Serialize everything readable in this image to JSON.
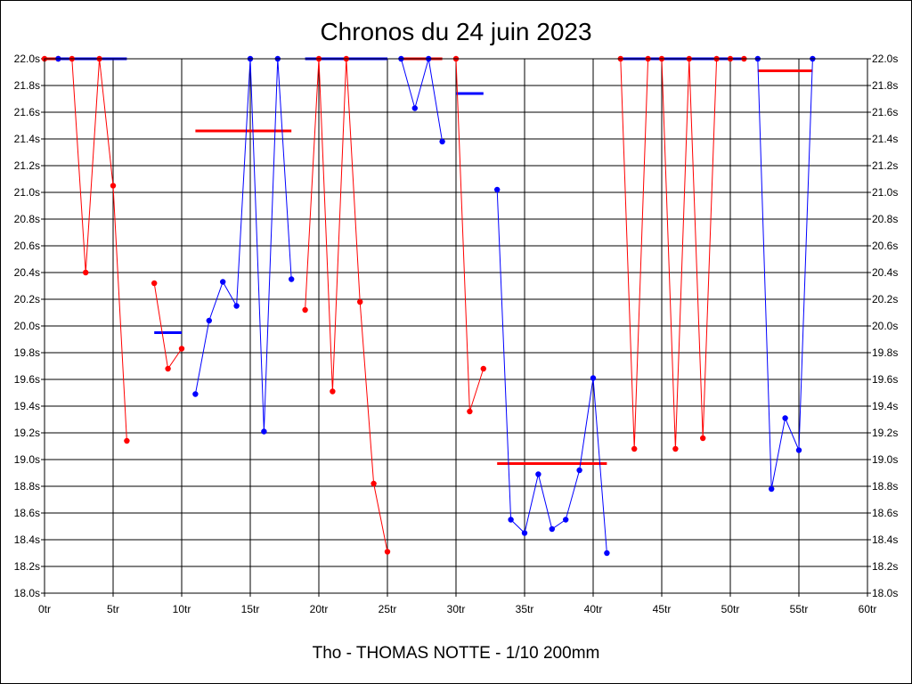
{
  "chart_data": {
    "type": "line",
    "title": "Chronos du 24 juin 2023",
    "subtitle": "Tho - THOMAS NOTTE - 1/10 200mm",
    "xlabel": "",
    "ylabel": "",
    "xlim": [
      0,
      60
    ],
    "ylim": [
      18.0,
      22.0
    ],
    "x_ticks": [
      0,
      5,
      10,
      15,
      20,
      25,
      30,
      35,
      40,
      45,
      50,
      55,
      60
    ],
    "x_tick_labels": [
      "0tr",
      "5tr",
      "10tr",
      "15tr",
      "20tr",
      "25tr",
      "30tr",
      "35tr",
      "40tr",
      "45tr",
      "50tr",
      "55tr",
      "60tr"
    ],
    "y_ticks": [
      18.0,
      18.2,
      18.4,
      18.6,
      18.8,
      19.0,
      19.2,
      19.4,
      19.6,
      19.8,
      20.0,
      20.2,
      20.4,
      20.6,
      20.8,
      21.0,
      21.2,
      21.4,
      21.6,
      21.8,
      22.0
    ],
    "y_tick_labels": [
      "18.0s",
      "18.2s",
      "18.4s",
      "18.6s",
      "18.8s",
      "19.0s",
      "19.2s",
      "19.4s",
      "19.6s",
      "19.8s",
      "20.0s",
      "20.2s",
      "20.4s",
      "20.6s",
      "20.8s",
      "21.0s",
      "21.2s",
      "21.4s",
      "21.6s",
      "21.8s",
      "22.0s"
    ],
    "y_axis_right": true,
    "grid": true,
    "series": [
      {
        "color": "#ff0000",
        "points": [
          [
            0,
            22.0
          ],
          [
            1,
            22.0
          ]
        ]
      },
      {
        "color": "#0000ff",
        "points": [
          [
            1,
            22.0
          ]
        ]
      },
      {
        "color": "#ff0000",
        "points": [
          [
            2,
            22.0
          ],
          [
            3,
            20.4
          ],
          [
            4,
            22.0
          ],
          [
            5,
            21.05
          ],
          [
            6,
            19.14
          ]
        ]
      },
      {
        "color": "#ff0000",
        "points": [
          [
            8,
            20.32
          ],
          [
            9,
            19.68
          ],
          [
            10,
            19.83
          ]
        ]
      },
      {
        "color": "#0000ff",
        "points": [
          [
            11,
            19.49
          ],
          [
            12,
            20.04
          ],
          [
            13,
            20.33
          ],
          [
            14,
            20.15
          ],
          [
            15,
            22.0
          ],
          [
            16,
            19.21
          ],
          [
            17,
            22.0
          ],
          [
            18,
            20.35
          ]
        ]
      },
      {
        "color": "#ff0000",
        "points": [
          [
            19,
            20.12
          ],
          [
            20,
            22.0
          ],
          [
            21,
            19.51
          ],
          [
            22,
            22.0
          ],
          [
            23,
            20.18
          ],
          [
            24,
            18.82
          ],
          [
            25,
            18.31
          ]
        ]
      },
      {
        "color": "#0000ff",
        "points": [
          [
            26,
            22.0
          ],
          [
            27,
            21.63
          ],
          [
            28,
            22.0
          ],
          [
            29,
            21.38
          ]
        ]
      },
      {
        "color": "#ff0000",
        "points": [
          [
            30,
            22.0
          ],
          [
            31,
            19.36
          ],
          [
            32,
            19.68
          ]
        ]
      },
      {
        "color": "#0000ff",
        "points": [
          [
            33,
            21.02
          ],
          [
            34,
            18.55
          ],
          [
            35,
            18.45
          ],
          [
            36,
            18.89
          ],
          [
            37,
            18.48
          ],
          [
            38,
            18.55
          ],
          [
            39,
            18.92
          ],
          [
            40,
            19.61
          ],
          [
            41,
            18.3
          ]
        ]
      },
      {
        "color": "#ff0000",
        "points": [
          [
            42,
            22.0
          ],
          [
            43,
            19.08
          ],
          [
            44,
            22.0
          ],
          [
            45,
            22.0
          ],
          [
            46,
            19.08
          ],
          [
            47,
            22.0
          ],
          [
            48,
            19.16
          ],
          [
            49,
            22.0
          ],
          [
            50,
            22.0
          ],
          [
            51,
            22.0
          ]
        ]
      },
      {
        "color": "#0000ff",
        "points": [
          [
            52,
            22.0
          ],
          [
            53,
            18.78
          ],
          [
            54,
            19.31
          ],
          [
            55,
            19.07
          ],
          [
            56,
            22.0
          ]
        ]
      }
    ],
    "averages": [
      {
        "color": "#ff0000",
        "x": [
          0,
          1
        ],
        "y": 22.0
      },
      {
        "color": "#0000ff",
        "x": [
          1,
          6
        ],
        "y": 22.0
      },
      {
        "color": "#0000ff",
        "x": [
          8,
          10
        ],
        "y": 19.95
      },
      {
        "color": "#ff0000",
        "x": [
          11,
          18
        ],
        "y": 21.46
      },
      {
        "color": "#0000ff",
        "x": [
          19,
          25
        ],
        "y": 22.0
      },
      {
        "color": "#ff0000",
        "x": [
          26,
          29
        ],
        "y": 22.0
      },
      {
        "color": "#0000ff",
        "x": [
          30,
          32
        ],
        "y": 21.74
      },
      {
        "color": "#ff0000",
        "x": [
          33,
          41
        ],
        "y": 18.97
      },
      {
        "color": "#0000ff",
        "x": [
          42,
          51
        ],
        "y": 22.0
      },
      {
        "color": "#ff0000",
        "x": [
          52,
          56
        ],
        "y": 21.91
      }
    ]
  }
}
